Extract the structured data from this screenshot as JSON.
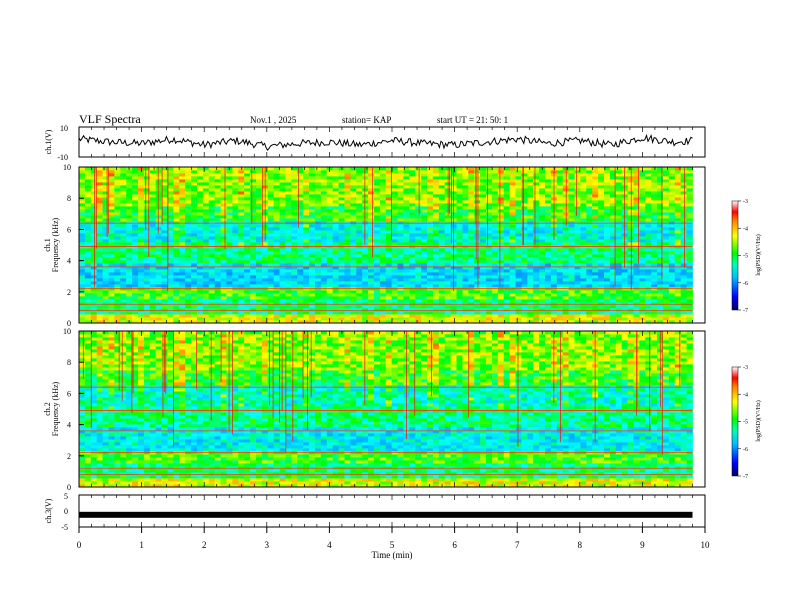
{
  "header": {
    "title": "VLF Spectra",
    "date": "Nov.1 , 2025",
    "station": "station= KAP",
    "start": "start UT =  21: 50: 1"
  },
  "chart_data": [
    {
      "type": "line",
      "panel": "waveform-ch1",
      "title": "",
      "xlabel": "",
      "ylabel": "ch.1(V)",
      "xlim": [
        0,
        10
      ],
      "ylim": [
        -10,
        10
      ],
      "ytick_labels": [
        "10",
        "-10"
      ],
      "x": [
        0,
        0.5,
        1,
        1.5,
        2,
        2.5,
        3,
        3.5,
        4,
        4.5,
        5,
        5.5,
        6,
        6.5,
        7,
        7.5,
        8,
        8.5,
        9,
        9.5,
        9.8
      ],
      "values": [
        2,
        0,
        -1,
        2,
        -2,
        1,
        -3,
        -1,
        0,
        -2,
        1,
        -1,
        -2,
        0,
        2,
        -1,
        1,
        -2,
        3,
        0,
        1
      ]
    },
    {
      "type": "heatmap",
      "panel": "spectrogram-ch1",
      "ylabel": "ch.1\nFrequency (kHz)",
      "xlim": [
        0,
        10
      ],
      "ylim": [
        0,
        10
      ],
      "yticks": [
        0,
        2,
        4,
        6,
        8,
        10
      ],
      "colorbar": {
        "label": "log(PSD)(V²/Hz)",
        "range": [
          -7,
          -3
        ],
        "ticks": [
          "-3",
          "-4",
          "-5",
          "-6",
          "-7"
        ]
      }
    },
    {
      "type": "heatmap",
      "panel": "spectrogram-ch2",
      "ylabel": "ch.2\nFrequency (kHz)",
      "xlim": [
        0,
        10
      ],
      "ylim": [
        0,
        10
      ],
      "yticks": [
        0,
        2,
        4,
        6,
        8,
        10
      ],
      "colorbar": {
        "label": "log(PSD)(V²/Hz)",
        "range": [
          -7,
          -3
        ],
        "ticks": [
          "-3",
          "-4",
          "-5",
          "-6",
          "-7"
        ]
      }
    },
    {
      "type": "line",
      "panel": "waveform-ch3",
      "ylabel": "ch.3(V)",
      "xlabel": "Time (min)",
      "xlim": [
        0,
        10
      ],
      "ylim": [
        -5,
        5
      ],
      "ytick_labels": [
        "5",
        "0",
        "-5"
      ],
      "xtick_labels": [
        "0",
        "1",
        "2",
        "3",
        "4",
        "5",
        "6",
        "7",
        "8",
        "9",
        "10"
      ],
      "x": [
        0,
        9.8
      ],
      "values": [
        -1.2,
        -1.2
      ]
    }
  ],
  "colors": {
    "colormap": [
      "#000060",
      "#0000ff",
      "#00a0ff",
      "#00ffff",
      "#00ff00",
      "#ffff00",
      "#ff8000",
      "#ff0000",
      "#ffffff"
    ],
    "line": "#000000"
  }
}
